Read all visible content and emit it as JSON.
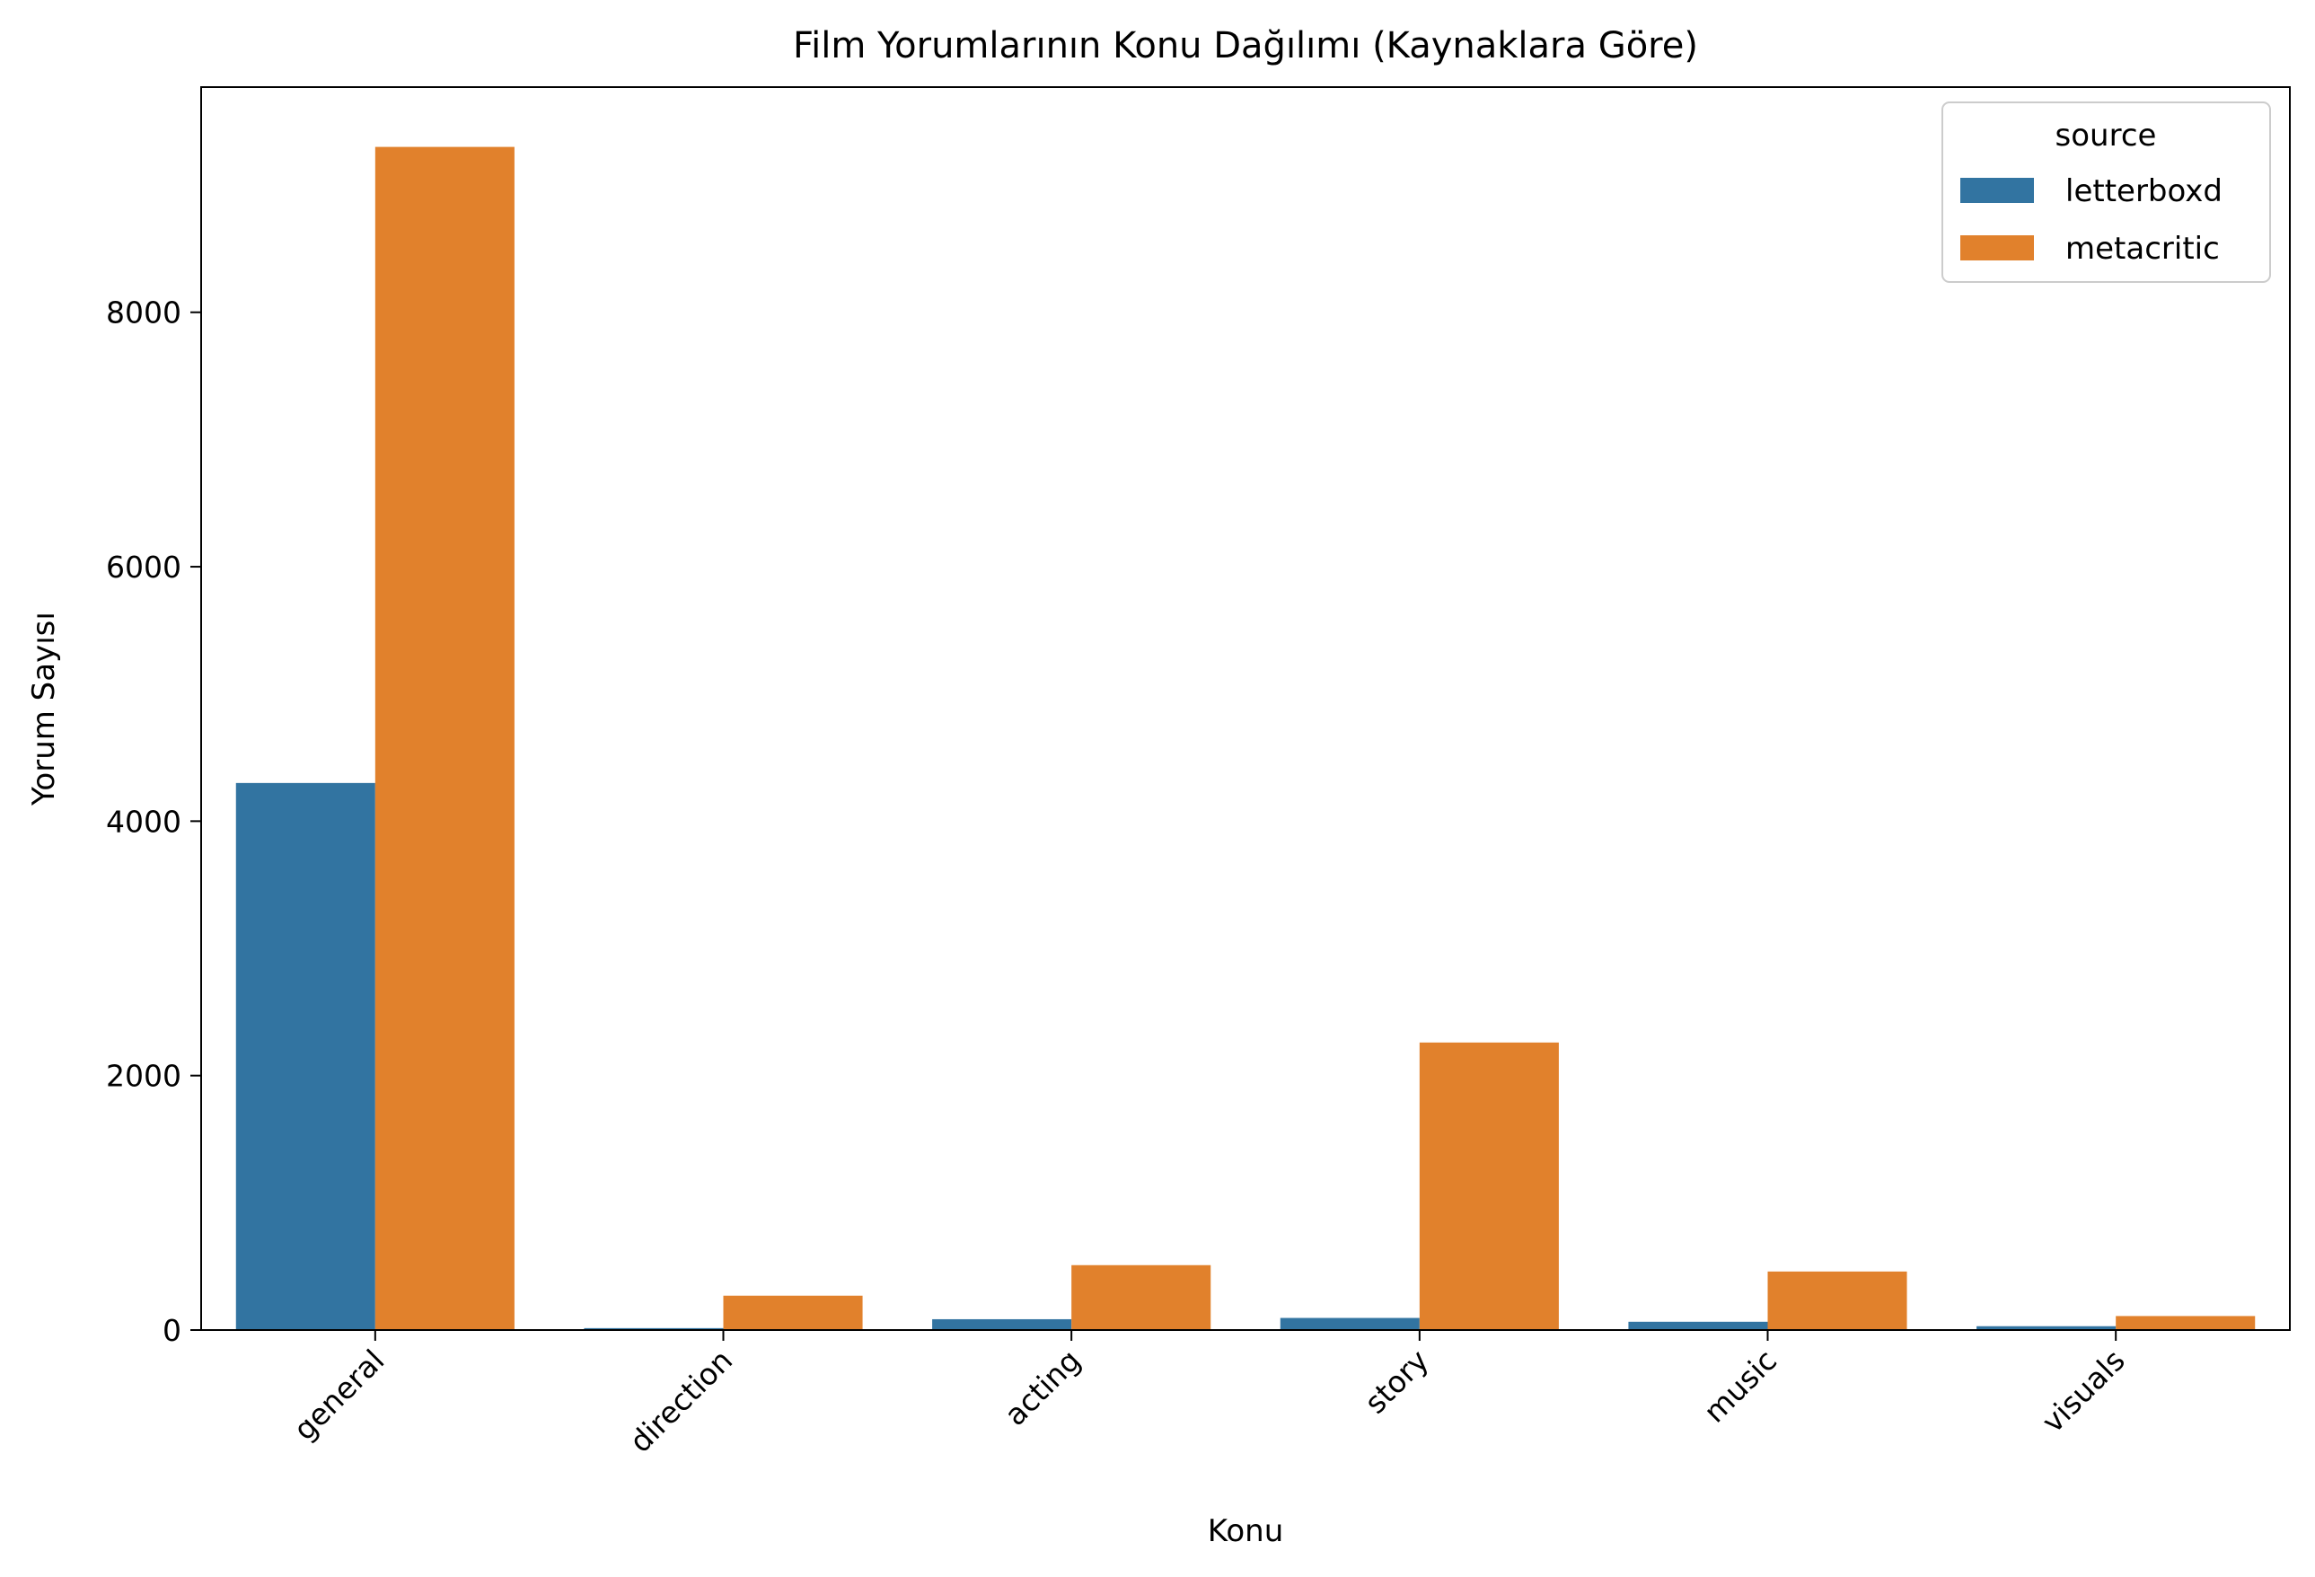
{
  "chart_data": {
    "type": "bar",
    "title": "Film Yorumlarının Konu Dağılımı (Kaynaklara Göre)",
    "xlabel": "Konu",
    "ylabel": "Yorum Sayısı",
    "categories": [
      "general",
      "direction",
      "acting",
      "story",
      "music",
      "visuals"
    ],
    "series": [
      {
        "name": "letterboxd",
        "color": "#3274a1",
        "values": [
          4300,
          15,
          85,
          95,
          65,
          30
        ]
      },
      {
        "name": "metacritic",
        "color": "#e1812c",
        "values": [
          9300,
          270,
          510,
          2260,
          460,
          110
        ]
      }
    ],
    "ylim": [
      0,
      9770
    ],
    "yticks": [
      0,
      2000,
      4000,
      6000,
      8000
    ],
    "grid": false,
    "legend": {
      "title": "source",
      "placement": "top-right"
    }
  }
}
